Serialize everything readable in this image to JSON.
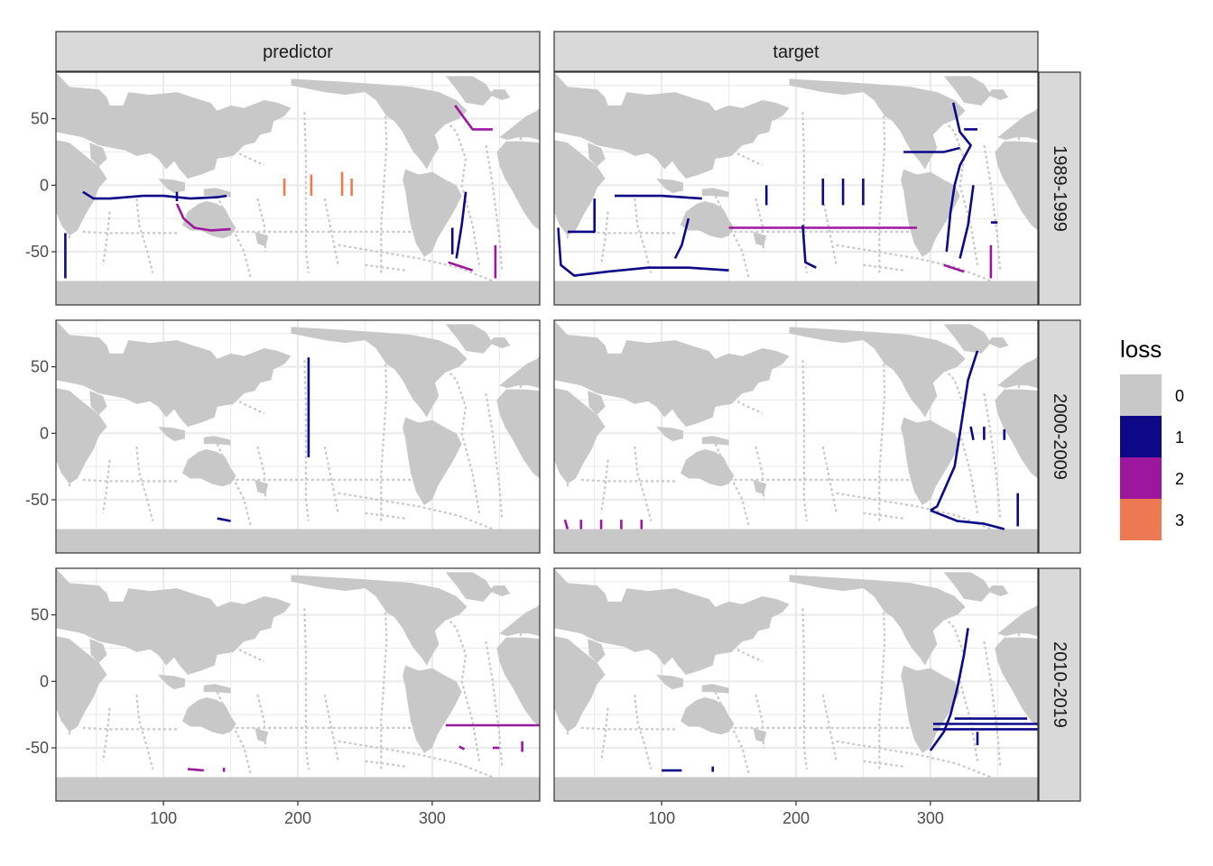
{
  "chart_data": {
    "type": "heatmap",
    "title": "",
    "xlabel": "",
    "ylabel": "",
    "xlim": [
      20,
      380
    ],
    "ylim": [
      -90,
      85
    ],
    "x_ticks": [
      100,
      200,
      300
    ],
    "x_tick_labels": [
      "100",
      "200",
      "300"
    ],
    "y_ticks": [
      50,
      0,
      -50
    ],
    "y_tick_labels": [
      "50",
      "0",
      "-50"
    ],
    "grid": true,
    "facet_columns": [
      "predictor",
      "target"
    ],
    "facet_rows": [
      "1989-1999",
      "2000-2009",
      "2010-2019"
    ],
    "legend": {
      "title": "loss",
      "position": "right",
      "entries": [
        {
          "label": "0",
          "color": "#c8c8c8"
        },
        {
          "label": "1",
          "color": "#0d0887"
        },
        {
          "label": "2",
          "color": "#9c179e"
        },
        {
          "label": "3",
          "color": "#ed7953"
        }
      ]
    },
    "land_color": "#c8c8c8",
    "panels": [
      {
        "col": "predictor",
        "row": "1989-1999",
        "segments": [
          {
            "loss": 2,
            "pts": [
              [
                317,
                60
              ],
              [
                330,
                42
              ],
              [
                345,
                42
              ]
            ]
          },
          {
            "loss": 1,
            "pts": [
              [
                40,
                -5
              ],
              [
                48,
                -10
              ],
              [
                60,
                -10
              ],
              [
                85,
                -8
              ],
              [
                100,
                -8
              ],
              [
                120,
                -10
              ],
              [
                140,
                -9
              ],
              [
                147,
                -8
              ]
            ]
          },
          {
            "loss": 1,
            "pts": [
              [
                110,
                -5
              ],
              [
                110,
                -12
              ]
            ]
          },
          {
            "loss": 2,
            "pts": [
              [
                110,
                -14
              ],
              [
                115,
                -25
              ],
              [
                123,
                -32
              ],
              [
                135,
                -34
              ],
              [
                150,
                -33
              ]
            ]
          },
          {
            "loss": 3,
            "pts": [
              [
                190,
                5
              ],
              [
                190,
                -8
              ]
            ]
          },
          {
            "loss": 3,
            "pts": [
              [
                210,
                8
              ],
              [
                210,
                -8
              ]
            ]
          },
          {
            "loss": 3,
            "pts": [
              [
                233,
                10
              ],
              [
                233,
                -8
              ]
            ]
          },
          {
            "loss": 3,
            "pts": [
              [
                240,
                5
              ],
              [
                240,
                -8
              ]
            ]
          },
          {
            "loss": 1,
            "pts": [
              [
                325,
                -5
              ],
              [
                322,
                -30
              ],
              [
                318,
                -55
              ]
            ]
          },
          {
            "loss": 1,
            "pts": [
              [
                315,
                -32
              ],
              [
                315,
                -52
              ]
            ]
          },
          {
            "loss": 2,
            "pts": [
              [
                312,
                -58
              ],
              [
                330,
                -64
              ]
            ]
          },
          {
            "loss": 2,
            "pts": [
              [
                347,
                -45
              ],
              [
                347,
                -70
              ]
            ]
          },
          {
            "loss": 1,
            "pts": [
              [
                27,
                -36
              ],
              [
                27,
                -70
              ]
            ]
          }
        ]
      },
      {
        "col": "target",
        "row": "1989-1999",
        "segments": [
          {
            "loss": 1,
            "pts": [
              [
                317,
                62
              ],
              [
                322,
                40
              ],
              [
                330,
                30
              ],
              [
                322,
                15
              ],
              [
                318,
                0
              ],
              [
                315,
                -20
              ],
              [
                312,
                -50
              ]
            ]
          },
          {
            "loss": 1,
            "pts": [
              [
                325,
                42
              ],
              [
                335,
                42
              ]
            ]
          },
          {
            "loss": 1,
            "pts": [
              [
                280,
                25
              ],
              [
                310,
                25
              ],
              [
                322,
                28
              ]
            ]
          },
          {
            "loss": 1,
            "pts": [
              [
                332,
                0
              ],
              [
                328,
                -30
              ],
              [
                322,
                -55
              ]
            ]
          },
          {
            "loss": 1,
            "pts": [
              [
                23,
                -32
              ],
              [
                25,
                -60
              ],
              [
                35,
                -68
              ],
              [
                60,
                -65
              ],
              [
                90,
                -62
              ],
              [
                120,
                -62
              ],
              [
                150,
                -64
              ]
            ]
          },
          {
            "loss": 1,
            "pts": [
              [
                50,
                -10
              ],
              [
                50,
                -35
              ],
              [
                30,
                -35
              ]
            ]
          },
          {
            "loss": 1,
            "pts": [
              [
                65,
                -8
              ],
              [
                100,
                -8
              ],
              [
                130,
                -10
              ]
            ]
          },
          {
            "loss": 1,
            "pts": [
              [
                120,
                -25
              ],
              [
                115,
                -45
              ],
              [
                110,
                -55
              ]
            ]
          },
          {
            "loss": 2,
            "pts": [
              [
                150,
                -32
              ],
              [
                290,
                -32
              ]
            ]
          },
          {
            "loss": 1,
            "pts": [
              [
                178,
                0
              ],
              [
                178,
                -15
              ]
            ]
          },
          {
            "loss": 1,
            "pts": [
              [
                220,
                5
              ],
              [
                220,
                -15
              ]
            ]
          },
          {
            "loss": 1,
            "pts": [
              [
                235,
                5
              ],
              [
                235,
                -15
              ]
            ]
          },
          {
            "loss": 1,
            "pts": [
              [
                250,
                5
              ],
              [
                250,
                -15
              ]
            ]
          },
          {
            "loss": 1,
            "pts": [
              [
                205,
                -30
              ],
              [
                207,
                -58
              ],
              [
                215,
                -62
              ]
            ]
          },
          {
            "loss": 2,
            "pts": [
              [
                310,
                -60
              ],
              [
                325,
                -65
              ]
            ]
          },
          {
            "loss": 1,
            "pts": [
              [
                345,
                -28
              ],
              [
                350,
                -28
              ]
            ]
          },
          {
            "loss": 2,
            "pts": [
              [
                345,
                -45
              ],
              [
                345,
                -70
              ]
            ]
          }
        ]
      },
      {
        "col": "predictor",
        "row": "2000-2009",
        "segments": [
          {
            "loss": 1,
            "pts": [
              [
                208,
                57
              ],
              [
                208,
                25
              ],
              [
                208,
                -18
              ]
            ]
          },
          {
            "loss": 1,
            "pts": [
              [
                140,
                -64
              ],
              [
                150,
                -66
              ]
            ]
          }
        ]
      },
      {
        "col": "target",
        "row": "2000-2009",
        "segments": [
          {
            "loss": 1,
            "pts": [
              [
                335,
                62
              ],
              [
                328,
                40
              ],
              [
                325,
                20
              ],
              [
                322,
                0
              ],
              [
                318,
                -25
              ],
              [
                305,
                -55
              ],
              [
                300,
                -58
              ]
            ]
          },
          {
            "loss": 1,
            "pts": [
              [
                300,
                -58
              ],
              [
                320,
                -66
              ],
              [
                340,
                -68
              ],
              [
                355,
                -72
              ]
            ]
          },
          {
            "loss": 1,
            "pts": [
              [
                330,
                5
              ],
              [
                332,
                -5
              ]
            ]
          },
          {
            "loss": 1,
            "pts": [
              [
                340,
                5
              ],
              [
                340,
                -5
              ]
            ]
          },
          {
            "loss": 1,
            "pts": [
              [
                355,
                3
              ],
              [
                355,
                -5
              ]
            ]
          },
          {
            "loss": 1,
            "pts": [
              [
                365,
                -45
              ],
              [
                365,
                -70
              ]
            ]
          },
          {
            "loss": 2,
            "pts": [
              [
                28,
                -65
              ],
              [
                30,
                -72
              ]
            ]
          },
          {
            "loss": 2,
            "pts": [
              [
                40,
                -65
              ],
              [
                40,
                -72
              ]
            ]
          },
          {
            "loss": 2,
            "pts": [
              [
                55,
                -65
              ],
              [
                55,
                -72
              ]
            ]
          },
          {
            "loss": 2,
            "pts": [
              [
                70,
                -65
              ],
              [
                70,
                -72
              ]
            ]
          },
          {
            "loss": 2,
            "pts": [
              [
                85,
                -65
              ],
              [
                85,
                -72
              ]
            ]
          }
        ]
      },
      {
        "col": "predictor",
        "row": "2010-2019",
        "segments": [
          {
            "loss": 2,
            "pts": [
              [
                310,
                -33
              ],
              [
                380,
                -33
              ]
            ]
          },
          {
            "loss": 2,
            "pts": [
              [
                320,
                -49
              ],
              [
                324,
                -51
              ]
            ]
          },
          {
            "loss": 2,
            "pts": [
              [
                345,
                -50
              ],
              [
                350,
                -50
              ]
            ]
          },
          {
            "loss": 2,
            "pts": [
              [
                367,
                -45
              ],
              [
                367,
                -53
              ]
            ]
          },
          {
            "loss": 2,
            "pts": [
              [
                118,
                -66
              ],
              [
                130,
                -67
              ]
            ]
          },
          {
            "loss": 2,
            "pts": [
              [
                145,
                -65
              ],
              [
                145,
                -68
              ]
            ]
          }
        ]
      },
      {
        "col": "target",
        "row": "2010-2019",
        "segments": [
          {
            "loss": 1,
            "pts": [
              [
                328,
                40
              ],
              [
                325,
                20
              ],
              [
                320,
                -5
              ],
              [
                315,
                -25
              ],
              [
                310,
                -38
              ],
              [
                300,
                -52
              ]
            ]
          },
          {
            "loss": 1,
            "pts": [
              [
                302,
                -32
              ],
              [
                380,
                -32
              ]
            ]
          },
          {
            "loss": 1,
            "pts": [
              [
                302,
                -36
              ],
              [
                380,
                -36
              ]
            ]
          },
          {
            "loss": 1,
            "pts": [
              [
                318,
                -28
              ],
              [
                372,
                -28
              ]
            ]
          },
          {
            "loss": 1,
            "pts": [
              [
                335,
                -38
              ],
              [
                335,
                -48
              ]
            ]
          },
          {
            "loss": 1,
            "pts": [
              [
                100,
                -67
              ],
              [
                115,
                -67
              ]
            ]
          },
          {
            "loss": 1,
            "pts": [
              [
                138,
                -64
              ],
              [
                138,
                -68
              ]
            ]
          }
        ]
      }
    ]
  }
}
